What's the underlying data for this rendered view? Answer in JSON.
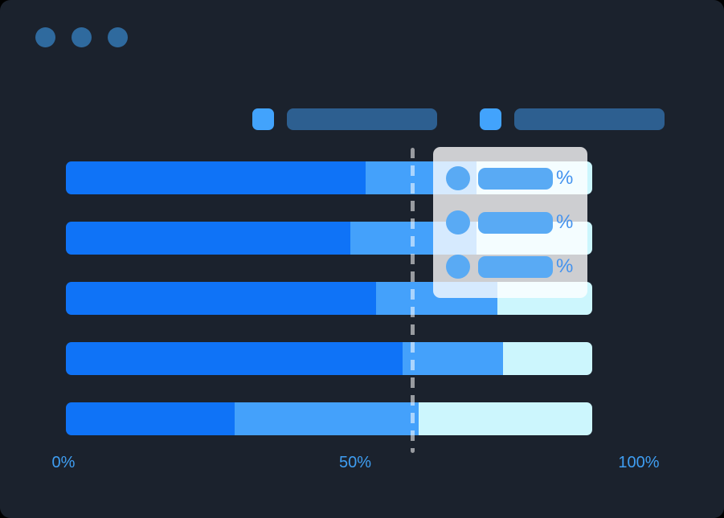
{
  "colors": {
    "page_background": "#000000",
    "window_background": "#1b222d",
    "traffic_dot": "#2f6a9e",
    "legend_swatch": "#42a3fc",
    "legend_placeholder": "#2d5f90",
    "segment_primary": "#0f73f7",
    "segment_secondary": "#44a1fb",
    "segment_tertiary": "#ccf6fd",
    "guideline": "rgba(255,255,255,0.55)",
    "tooltip_panel": "rgba(255,255,255,0.78)",
    "tooltip_accent": "#59aaf4",
    "percent_text": "#4392ee",
    "axis_text": "#3f9ef2"
  },
  "chart_data": {
    "type": "bar",
    "orientation": "horizontal",
    "stacked": true,
    "title": "",
    "xlabel": "",
    "ylabel": "",
    "xlim": [
      0,
      100
    ],
    "grid": false,
    "legend_position": "top",
    "legend_items": 2,
    "categories": [
      "",
      "",
      "",
      "",
      ""
    ],
    "series": [
      {
        "name": "",
        "values": [
          57,
          54,
          59,
          64,
          32
        ]
      },
      {
        "name": "",
        "values": [
          21,
          24,
          23,
          19,
          35
        ]
      },
      {
        "name": "",
        "values": [
          22,
          22,
          18,
          17,
          33
        ]
      }
    ],
    "x_tick_labels": [
      "0%",
      "50%",
      "100%"
    ],
    "guideline_percent": 65.8,
    "tooltip": {
      "rows": [
        {
          "value_label": "%"
        },
        {
          "value_label": "%"
        },
        {
          "value_label": "%"
        }
      ]
    }
  }
}
